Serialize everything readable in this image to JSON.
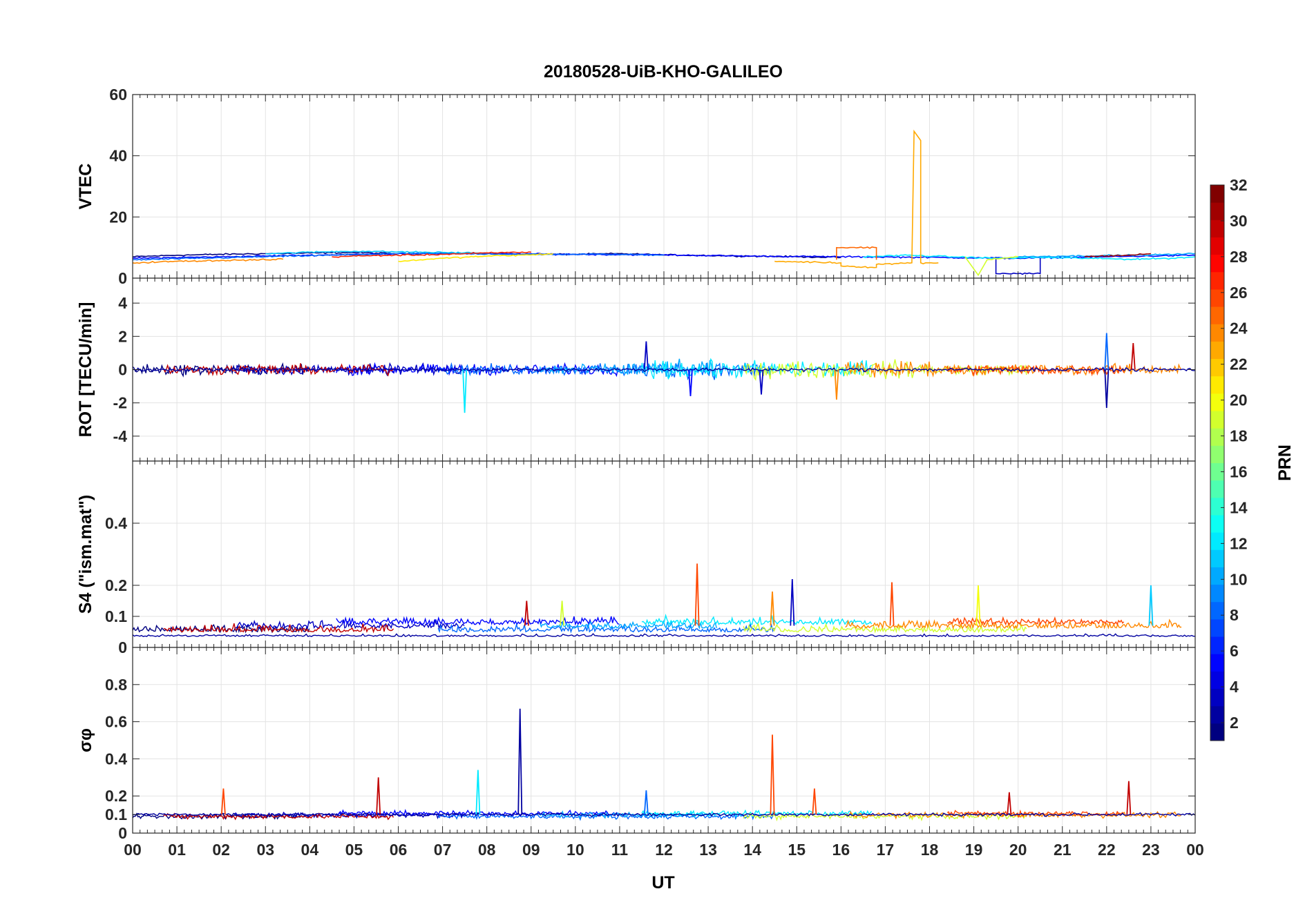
{
  "chart_data": {
    "type": "line",
    "title": "20180528-UiB-KHO-GALILEO",
    "xlabel": "UT",
    "x_tick_labels": [
      "00",
      "01",
      "02",
      "03",
      "04",
      "05",
      "06",
      "07",
      "08",
      "09",
      "10",
      "11",
      "12",
      "13",
      "14",
      "15",
      "16",
      "17",
      "18",
      "19",
      "20",
      "21",
      "22",
      "23",
      "00"
    ],
    "x_range_hours": [
      0,
      24
    ],
    "grid": true,
    "colorbar": {
      "label": "PRN",
      "range": [
        1,
        32
      ],
      "colormap": "jet",
      "tick_labels": [
        "2",
        "4",
        "6",
        "8",
        "10",
        "12",
        "14",
        "16",
        "18",
        "20",
        "22",
        "24",
        "26",
        "28",
        "30",
        "32"
      ]
    },
    "panels": [
      {
        "id": "vtec",
        "ylabel": "VTEC",
        "ylim": [
          0,
          60
        ],
        "yticks": [
          "0",
          "20",
          "40",
          "60"
        ],
        "series": [
          {
            "prn": 1,
            "x": [
              0,
              1,
              2,
              3,
              4,
              5,
              6,
              7,
              8,
              9,
              10,
              11,
              12,
              13,
              14,
              15,
              16
            ],
            "y": [
              7,
              7.5,
              7.8,
              8,
              8.2,
              8.4,
              8,
              8.2,
              8,
              7.8,
              7.8,
              8,
              7.6,
              7.4,
              7.2,
              7,
              6.8
            ]
          },
          {
            "prn": 5,
            "x": [
              0,
              2,
              4,
              6,
              8,
              10,
              12,
              14,
              16,
              18,
              20,
              22,
              24
            ],
            "y": [
              6.5,
              7,
              7.5,
              8,
              8,
              7.8,
              7.6,
              7.2,
              7,
              6.8,
              6.5,
              7,
              7.5
            ]
          },
          {
            "prn": 3,
            "x": [
              19.5,
              19.5,
              20.5,
              20.5
            ],
            "y": [
              7,
              1.5,
              1.5,
              7
            ]
          },
          {
            "prn": 8,
            "x": [
              0,
              1.5,
              3,
              4.5,
              6,
              7.5,
              9,
              10.5,
              12
            ],
            "y": [
              6,
              6.5,
              7,
              7.5,
              8,
              8,
              7.8,
              7.8,
              7.6
            ]
          },
          {
            "prn": 11,
            "x": [
              3,
              4,
              5,
              6,
              7,
              8
            ],
            "y": [
              8,
              8.5,
              8.8,
              8.6,
              8.4,
              8.2
            ]
          },
          {
            "prn": 12,
            "x": [
              16.5,
              17.5,
              18.5,
              19.5,
              20.5,
              21.5,
              22.5,
              23.5,
              24
            ],
            "y": [
              7,
              7.5,
              7,
              6.5,
              6.8,
              6.5,
              6.2,
              6.5,
              7
            ]
          },
          {
            "prn": 10,
            "x": [
              20,
              21,
              22,
              23,
              24
            ],
            "y": [
              7,
              7.2,
              7.4,
              7.6,
              8
            ]
          },
          {
            "prn": 24,
            "x": [
              0,
              1,
              2,
              3,
              3.4
            ],
            "y": [
              5,
              5.5,
              5.8,
              6,
              6.2
            ]
          },
          {
            "prn": 23,
            "x": [
              14.5,
              15.5,
              16,
              16,
              16.8,
              16.8,
              17.6,
              17.65,
              17.7,
              17.8,
              17.8,
              18.2
            ],
            "y": [
              5.5,
              5.2,
              5,
              4,
              3.5,
              4.5,
              5,
              48,
              47,
              45,
              5,
              5
            ]
          },
          {
            "prn": 25,
            "x": [
              15.9,
              15.9,
              16.8,
              16.8
            ],
            "y": [
              6,
              10,
              10,
              6
            ]
          },
          {
            "prn": 21,
            "x": [
              6,
              7,
              8,
              9,
              9.5
            ],
            "y": [
              5.5,
              6.5,
              7.2,
              7.6,
              8
            ]
          },
          {
            "prn": 19,
            "x": [
              18.8,
              19,
              19.1,
              19.3,
              20
            ],
            "y": [
              7,
              3,
              1,
              6,
              7
            ]
          },
          {
            "prn": 27,
            "x": [
              4.5,
              5.5,
              6.5,
              7.5,
              8.5,
              9
            ],
            "y": [
              7,
              7.4,
              7.6,
              8,
              8.4,
              8.5
            ]
          },
          {
            "prn": 31,
            "x": [
              21.5,
              22,
              22.5,
              23
            ],
            "y": [
              7,
              7.3,
              7.5,
              8
            ]
          }
        ]
      },
      {
        "id": "rot",
        "ylabel": "ROT [TECU/min]",
        "ylim": [
          -5.5,
          5.5
        ],
        "yticks": [
          "-4",
          "-2",
          "0",
          "2",
          "4"
        ],
        "spikes": [
          {
            "prn": 12,
            "x": 7.5,
            "y": -2.6
          },
          {
            "prn": 3,
            "x": 11.6,
            "y": 1.7
          },
          {
            "prn": 5,
            "x": 12.6,
            "y": -1.6
          },
          {
            "prn": 3,
            "x": 14.2,
            "y": -1.5
          },
          {
            "prn": 24,
            "x": 15.9,
            "y": -1.8
          },
          {
            "prn": 8,
            "x": 22,
            "y": 2.2
          },
          {
            "prn": 2,
            "x": 22,
            "y": -2.3
          },
          {
            "prn": 30,
            "x": 22.6,
            "y": 1.6
          }
        ]
      },
      {
        "id": "s4",
        "ylabel": "S4 (\"ism.mat\")",
        "ylim": [
          0,
          0.6
        ],
        "yticks": [
          "0",
          "0.1",
          "0.2",
          "0.4"
        ],
        "spikes": [
          {
            "prn": 26,
            "x": 12.75,
            "y": 0.27
          },
          {
            "prn": 24,
            "x": 14.45,
            "y": 0.18
          },
          {
            "prn": 3,
            "x": 14.9,
            "y": 0.22
          },
          {
            "prn": 26,
            "x": 17.15,
            "y": 0.21
          },
          {
            "prn": 20,
            "x": 19.1,
            "y": 0.2
          },
          {
            "prn": 11,
            "x": 23,
            "y": 0.2
          },
          {
            "prn": 30,
            "x": 8.9,
            "y": 0.15
          },
          {
            "prn": 19,
            "x": 9.7,
            "y": 0.15
          }
        ]
      },
      {
        "id": "sigma_phi",
        "ylabel": "σφ",
        "ylim": [
          0,
          1
        ],
        "yticks": [
          "0",
          "0.1",
          "0.2",
          "0.4",
          "0.6",
          "0.8"
        ],
        "spikes": [
          {
            "prn": 2,
            "x": 8.75,
            "y": 0.67
          },
          {
            "prn": 26,
            "x": 14.45,
            "y": 0.53
          },
          {
            "prn": 12,
            "x": 7.8,
            "y": 0.34
          },
          {
            "prn": 30,
            "x": 5.55,
            "y": 0.3
          },
          {
            "prn": 30,
            "x": 22.5,
            "y": 0.28
          },
          {
            "prn": 26,
            "x": 2.05,
            "y": 0.24
          },
          {
            "prn": 26,
            "x": 15.4,
            "y": 0.24
          },
          {
            "prn": 8,
            "x": 11.6,
            "y": 0.23
          },
          {
            "prn": 30,
            "x": 19.8,
            "y": 0.22
          }
        ]
      }
    ]
  }
}
